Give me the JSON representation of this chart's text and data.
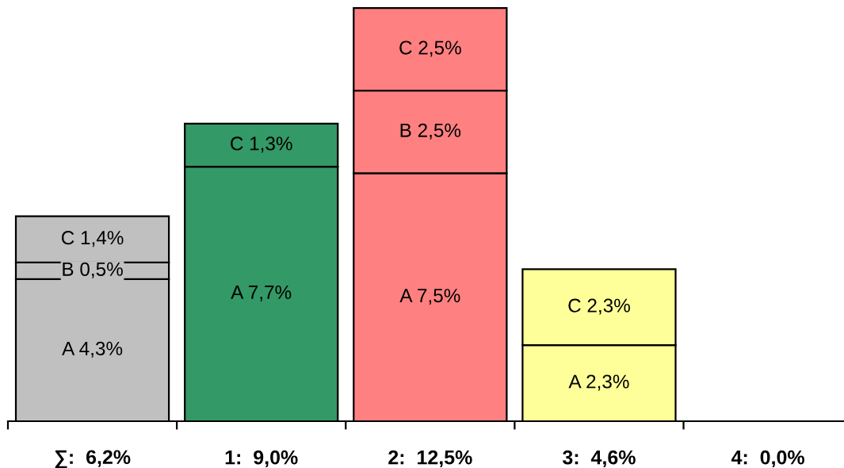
{
  "chart_data": {
    "type": "bar",
    "stacked": true,
    "tick_labels": "x",
    "ylim": [
      0,
      12.6
    ],
    "categories": [
      "∑:  6,2%",
      "1:  9,0%",
      "2:  12,5%",
      "3:  4,6%",
      "4:  0,0%"
    ],
    "series": [
      {
        "colors": [
          "#c0c0c0",
          "#339966",
          "#ff8080",
          "#ffff99",
          null
        ],
        "values": [
          4.3,
          7.7,
          7.5,
          2.3,
          null
        ],
        "value_labels": [
          "A 4,3%",
          "A 7,7%",
          "A 7,5%",
          "A 2,3%",
          null
        ]
      },
      {
        "colors": [
          "#c0c0c0",
          null,
          "#ff8080",
          null,
          null
        ],
        "values": [
          0.5,
          null,
          2.5,
          null,
          null
        ],
        "value_labels": [
          "B 0,5%",
          null,
          "B 2,5%",
          null,
          null
        ]
      },
      {
        "colors": [
          "#c0c0c0",
          "#339966",
          "#ff8080",
          "#ffff99",
          null
        ],
        "values": [
          1.4,
          1.3,
          2.5,
          2.3,
          null
        ],
        "value_labels": [
          "C 1,4%",
          "C 1,3%",
          "C 2,5%",
          "C 2,3%",
          null
        ]
      }
    ]
  }
}
